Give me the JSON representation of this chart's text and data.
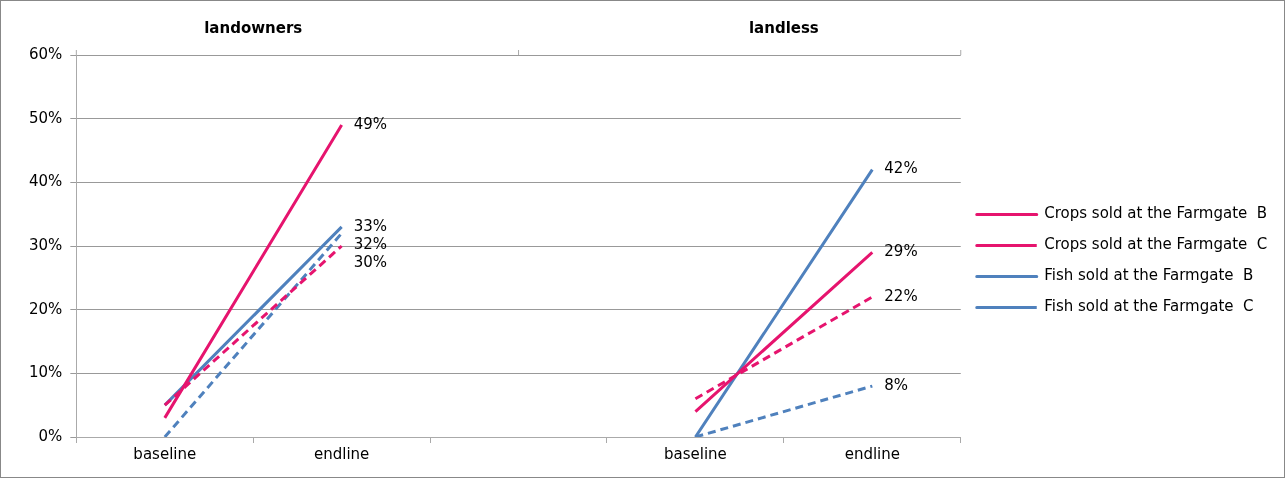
{
  "chart_data": {
    "type": "line",
    "categories": [
      "baseline",
      "endline",
      null,
      "baseline",
      "endline"
    ],
    "series": [
      {
        "name": "Crops sold at the Farmgate  B",
        "color": "#e6146e",
        "line_style": "solid",
        "values": [
          3,
          49,
          null,
          4,
          29
        ],
        "value_labels": [
          null,
          "49%",
          null,
          null,
          "29%"
        ]
      },
      {
        "name": "Crops sold at the Farmgate  C",
        "color": "#e6146e",
        "line_style": "dashed",
        "values": [
          5,
          30,
          null,
          6,
          22
        ],
        "value_labels": [
          null,
          "30%",
          null,
          null,
          "22%"
        ]
      },
      {
        "name": "Fish sold at the Farmgate  B",
        "color": "#4f81bd",
        "line_style": "solid",
        "values": [
          5,
          33,
          null,
          0,
          42
        ],
        "value_labels": [
          null,
          "33%",
          null,
          null,
          "42%"
        ]
      },
      {
        "name": "Fish sold at the Farmgate  C",
        "color": "#4f81bd",
        "line_style": "dashed",
        "values": [
          0,
          32,
          null,
          0,
          8
        ],
        "value_labels": [
          null,
          "32%",
          null,
          null,
          "8%"
        ]
      }
    ],
    "ylim": [
      0,
      60
    ],
    "yticks": [
      {
        "value": 0,
        "label": "0%"
      },
      {
        "value": 10,
        "label": "10%"
      },
      {
        "value": 20,
        "label": "20%"
      },
      {
        "value": 30,
        "label": "30%"
      },
      {
        "value": 40,
        "label": "40%"
      },
      {
        "value": 50,
        "label": "50%"
      },
      {
        "value": 60,
        "label": "60%"
      }
    ],
    "grid": "y",
    "legend": "right",
    "marker": "none",
    "annotations": [
      "landowners",
      "landless"
    ]
  }
}
